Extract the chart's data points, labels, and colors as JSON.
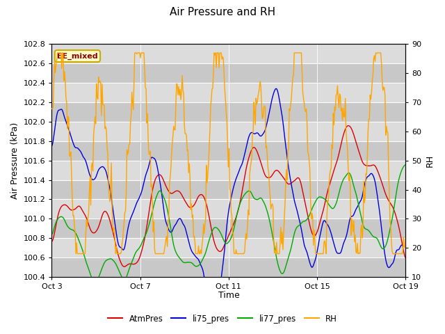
{
  "title": "Air Pressure and RH",
  "xlabel": "Time",
  "ylabel_left": "Air Pressure (kPa)",
  "ylabel_right": "RH",
  "ylim_left": [
    100.4,
    102.8
  ],
  "ylim_right": [
    10,
    90
  ],
  "yticks_left": [
    100.4,
    100.6,
    100.8,
    101.0,
    101.2,
    101.4,
    101.6,
    101.8,
    102.0,
    102.2,
    102.4,
    102.6,
    102.8
  ],
  "yticks_right": [
    10,
    20,
    30,
    40,
    50,
    60,
    70,
    80,
    90
  ],
  "xtick_labels": [
    "Oct 3",
    "Oct 7",
    "Oct 11",
    "Oct 15",
    "Oct 19"
  ],
  "annotation_text": "EE_mixed",
  "annotation_color": "#8B0000",
  "annotation_bg": "#FFFFCC",
  "annotation_border": "#CCAA00",
  "colors": {
    "AtmPres": "#DD0000",
    "li75_pres": "#0000DD",
    "li77_pres": "#00AA00",
    "RH": "#FFA500"
  },
  "legend_labels": [
    "AtmPres",
    "li75_pres",
    "li77_pres",
    "RH"
  ],
  "fig_bg": "#FFFFFF",
  "plot_bg_light": "#DCDCDC",
  "plot_bg_dark": "#C8C8C8",
  "grid_color": "#FFFFFF",
  "n_points": 500
}
